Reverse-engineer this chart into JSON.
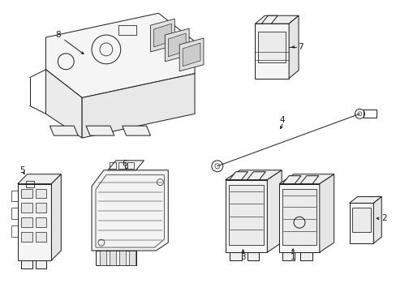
{
  "bg_color": "#ffffff",
  "lc": "#1a1a1a",
  "lw": 0.7,
  "fig_width": 4.89,
  "fig_height": 3.6,
  "dpi": 100
}
